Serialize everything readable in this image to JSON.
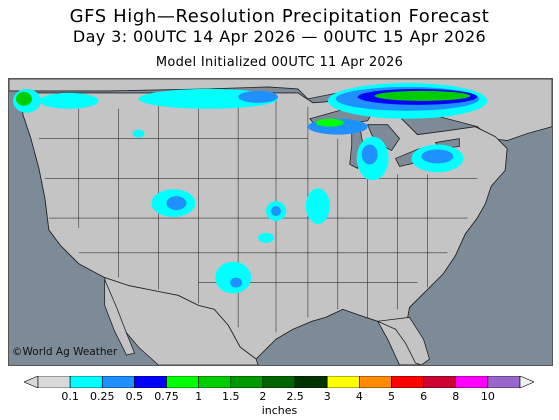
{
  "header": {
    "title": "GFS High—Resolution Precipitation Forecast",
    "subtitle": "Day 3: 00UTC 14 Apr 2026 — 00UTC 15 Apr 2026",
    "initialized": "Model Initialized 00UTC 11 Apr 2026"
  },
  "map": {
    "credit": "©World Ag Weather",
    "land_color": "#c4c4c4",
    "water_color": "#7d8a98",
    "border_color": "#222222"
  },
  "legend": {
    "units": "inches",
    "bins": [
      {
        "label": "0.1",
        "color": "#00ffff"
      },
      {
        "label": "0.25",
        "color": "#1e90ff"
      },
      {
        "label": "0.5",
        "color": "#0000ff"
      },
      {
        "label": "0.75",
        "color": "#00ff00"
      },
      {
        "label": "1",
        "color": "#00cc00"
      },
      {
        "label": "1.5",
        "color": "#009900"
      },
      {
        "label": "2",
        "color": "#006400"
      },
      {
        "label": "2.5",
        "color": "#003300"
      },
      {
        "label": "3",
        "color": "#ffff00"
      },
      {
        "label": "4",
        "color": "#ff8c00"
      },
      {
        "label": "5",
        "color": "#ff0000"
      },
      {
        "label": "6",
        "color": "#cc0033"
      },
      {
        "label": "8",
        "color": "#ff00ff"
      },
      {
        "label": "10",
        "color": "#9966cc"
      }
    ]
  }
}
